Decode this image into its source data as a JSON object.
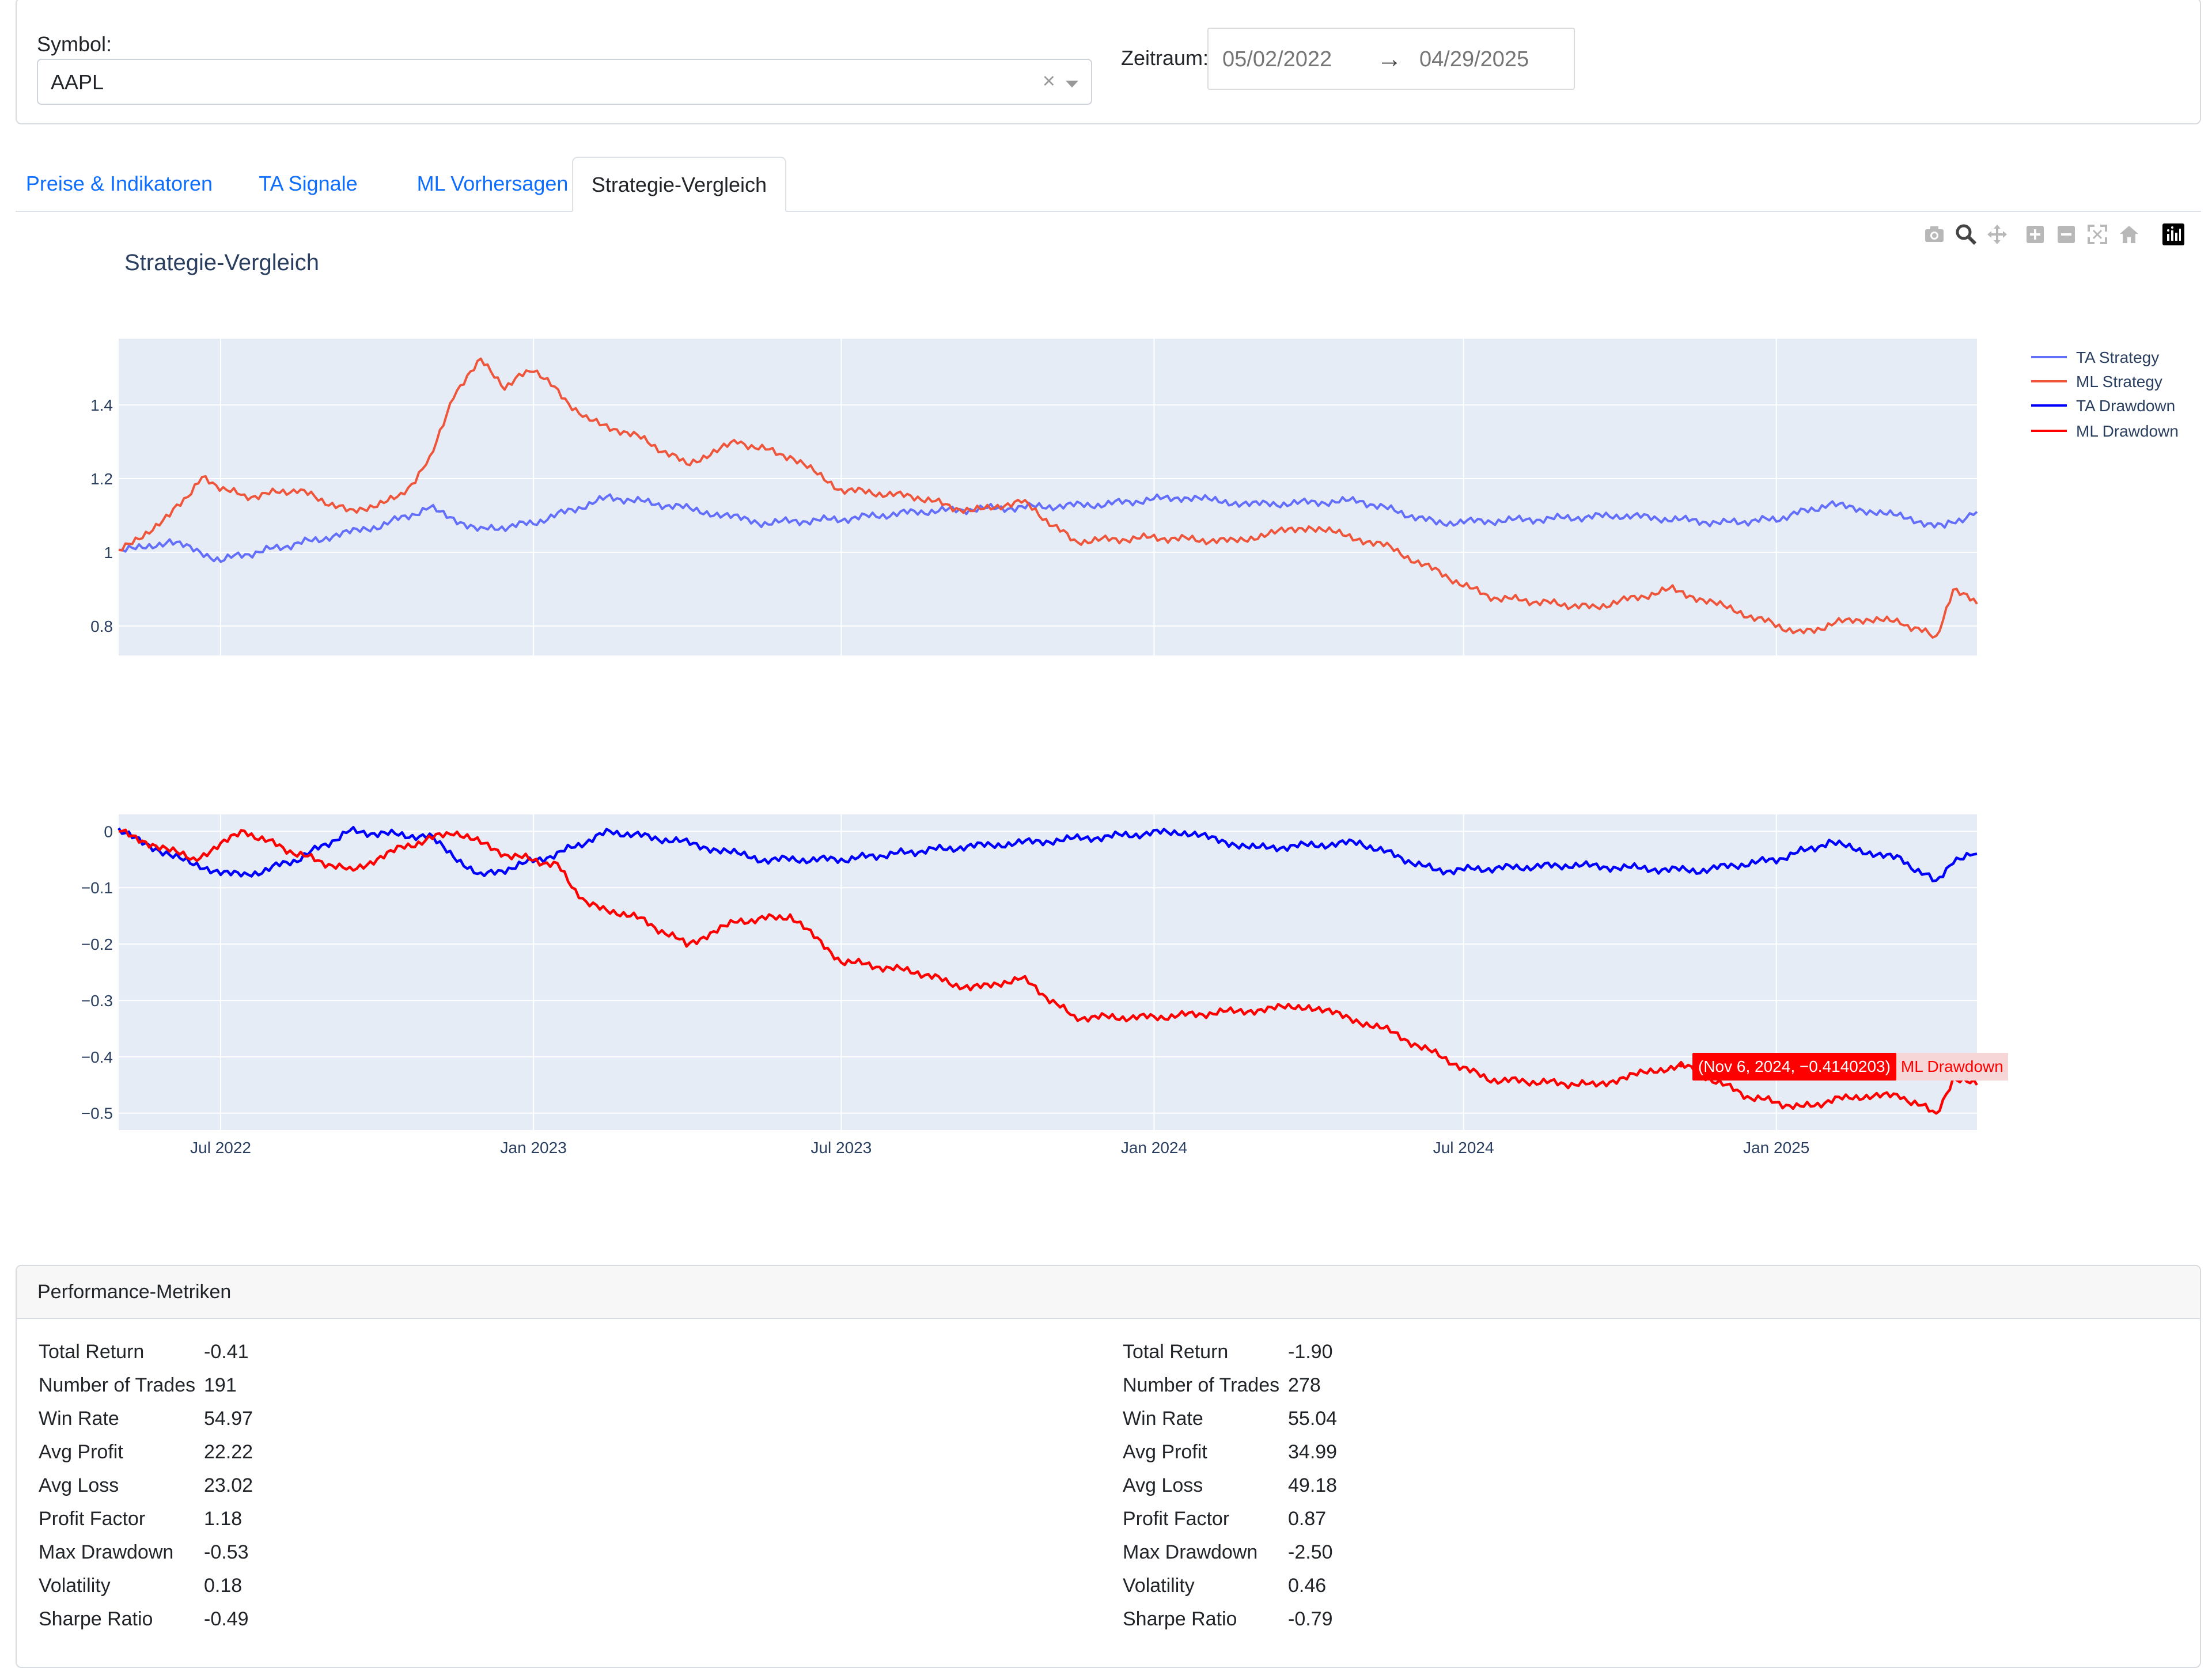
{
  "filters": {
    "symbol_label": "Symbol:",
    "symbol_value": "AAPL",
    "clear_glyph": "×",
    "period_label": "Zeitraum:",
    "start_date": "05/02/2022",
    "end_date": "04/29/2025",
    "arrow_glyph": "→"
  },
  "tabs": [
    {
      "label": "Preise & Indikatoren"
    },
    {
      "label": "TA Signale"
    },
    {
      "label": "ML Vorhersagen"
    },
    {
      "label": "Strategie-Vergleich",
      "active": true
    }
  ],
  "modebar": {
    "icons": [
      "camera-icon",
      "zoom-icon",
      "pan-icon",
      "zoom-in-icon",
      "zoom-out-icon",
      "autoscale-icon",
      "reset-axes-icon",
      "plotly-logo-icon"
    ]
  },
  "chart_data": {
    "type": "line",
    "title": "Strategie-Vergleich",
    "x_ticks": [
      "Jul 2022",
      "Jan 2023",
      "Jul 2023",
      "Jan 2024",
      "Jul 2024",
      "Jan 2025"
    ],
    "x_range": [
      "2022-05-02",
      "2025-04-29"
    ],
    "legend": [
      "TA Strategy",
      "ML Strategy",
      "TA Drawdown",
      "ML Drawdown"
    ],
    "legend_position": "top-right",
    "colors": {
      "ta_strategy": "#636efa",
      "ml_strategy": "#ef553b",
      "ta_drawdown": "#0000ff",
      "ml_drawdown": "#ff0000"
    },
    "panels": [
      {
        "name": "equity",
        "y_ticks": [
          "0.8",
          "1",
          "1.2",
          "1.4"
        ],
        "y_range": [
          0.72,
          1.58
        ],
        "series": [
          {
            "name": "TA Strategy",
            "points": [
              [
                "2022-05-02",
                1.0
              ],
              [
                "2022-06-01",
                1.03
              ],
              [
                "2022-07-01",
                0.98
              ],
              [
                "2022-08-01",
                1.01
              ],
              [
                "2022-09-01",
                1.04
              ],
              [
                "2022-10-01",
                1.07
              ],
              [
                "2022-11-01",
                1.12
              ],
              [
                "2022-12-01",
                1.06
              ],
              [
                "2023-01-01",
                1.08
              ],
              [
                "2023-02-15",
                1.15
              ],
              [
                "2023-04-01",
                1.12
              ],
              [
                "2023-05-15",
                1.08
              ],
              [
                "2023-07-01",
                1.09
              ],
              [
                "2023-08-15",
                1.11
              ],
              [
                "2023-10-01",
                1.12
              ],
              [
                "2023-12-01",
                1.13
              ],
              [
                "2024-01-15",
                1.15
              ],
              [
                "2024-03-01",
                1.13
              ],
              [
                "2024-05-01",
                1.14
              ],
              [
                "2024-06-15",
                1.08
              ],
              [
                "2024-08-15",
                1.09
              ],
              [
                "2024-10-01",
                1.1
              ],
              [
                "2024-12-01",
                1.08
              ],
              [
                "2025-01-01",
                1.09
              ],
              [
                "2025-02-01",
                1.13
              ],
              [
                "2025-03-01",
                1.11
              ],
              [
                "2025-04-10",
                1.07
              ],
              [
                "2025-04-29",
                1.11
              ]
            ]
          },
          {
            "name": "ML Strategy",
            "points": [
              [
                "2022-05-02",
                1.0
              ],
              [
                "2022-06-01",
                1.1
              ],
              [
                "2022-06-20",
                1.2
              ],
              [
                "2022-07-15",
                1.15
              ],
              [
                "2022-08-15",
                1.17
              ],
              [
                "2022-09-15",
                1.11
              ],
              [
                "2022-10-15",
                1.15
              ],
              [
                "2022-11-01",
                1.25
              ],
              [
                "2022-11-15",
                1.43
              ],
              [
                "2022-12-01",
                1.52
              ],
              [
                "2022-12-15",
                1.45
              ],
              [
                "2023-01-01",
                1.5
              ],
              [
                "2023-02-01",
                1.36
              ],
              [
                "2023-03-01",
                1.32
              ],
              [
                "2023-04-01",
                1.24
              ],
              [
                "2023-05-01",
                1.3
              ],
              [
                "2023-06-01",
                1.26
              ],
              [
                "2023-07-01",
                1.17
              ],
              [
                "2023-08-15",
                1.15
              ],
              [
                "2023-09-15",
                1.11
              ],
              [
                "2023-10-15",
                1.14
              ],
              [
                "2023-11-15",
                1.03
              ],
              [
                "2024-01-01",
                1.04
              ],
              [
                "2024-02-15",
                1.03
              ],
              [
                "2024-04-01",
                1.07
              ],
              [
                "2024-05-15",
                1.02
              ],
              [
                "2024-07-15",
                0.88
              ],
              [
                "2024-09-15",
                0.85
              ],
              [
                "2024-11-01",
                0.9
              ],
              [
                "2024-12-15",
                0.83
              ],
              [
                "2025-01-15",
                0.78
              ],
              [
                "2025-02-15",
                0.82
              ],
              [
                "2025-03-15",
                0.81
              ],
              [
                "2025-04-05",
                0.77
              ],
              [
                "2025-04-15",
                0.9
              ],
              [
                "2025-04-29",
                0.86
              ]
            ]
          }
        ]
      },
      {
        "name": "drawdown",
        "y_ticks": [
          "0",
          "−0.1",
          "−0.2",
          "−0.3",
          "−0.4",
          "−0.5"
        ],
        "y_range": [
          -0.53,
          0.03
        ],
        "series": [
          {
            "name": "TA Drawdown",
            "points": [
              [
                "2022-05-02",
                0.0
              ],
              [
                "2022-06-15",
                -0.06
              ],
              [
                "2022-07-15",
                -0.08
              ],
              [
                "2022-08-15",
                -0.05
              ],
              [
                "2022-09-15",
                0.0
              ],
              [
                "2022-11-01",
                -0.01
              ],
              [
                "2022-12-01",
                -0.08
              ],
              [
                "2023-01-15",
                -0.04
              ],
              [
                "2023-02-15",
                0.0
              ],
              [
                "2023-04-01",
                -0.02
              ],
              [
                "2023-05-15",
                -0.05
              ],
              [
                "2023-07-01",
                -0.05
              ],
              [
                "2023-09-01",
                -0.03
              ],
              [
                "2023-12-01",
                -0.01
              ],
              [
                "2024-01-15",
                0.0
              ],
              [
                "2024-03-01",
                -0.03
              ],
              [
                "2024-05-01",
                -0.02
              ],
              [
                "2024-06-15",
                -0.07
              ],
              [
                "2024-09-01",
                -0.06
              ],
              [
                "2024-11-15",
                -0.07
              ],
              [
                "2025-01-01",
                -0.05
              ],
              [
                "2025-02-01",
                -0.02
              ],
              [
                "2025-03-15",
                -0.05
              ],
              [
                "2025-04-05",
                -0.09
              ],
              [
                "2025-04-15",
                -0.05
              ],
              [
                "2025-04-29",
                -0.04
              ]
            ]
          },
          {
            "name": "ML Drawdown",
            "points": [
              [
                "2022-05-02",
                0.0
              ],
              [
                "2022-06-15",
                -0.05
              ],
              [
                "2022-07-15",
                0.0
              ],
              [
                "2022-08-15",
                -0.04
              ],
              [
                "2022-09-15",
                -0.07
              ],
              [
                "2022-10-15",
                -0.03
              ],
              [
                "2022-11-15",
                0.0
              ],
              [
                "2022-12-15",
                -0.04
              ],
              [
                "2023-01-15",
                -0.06
              ],
              [
                "2023-02-01",
                -0.13
              ],
              [
                "2023-03-01",
                -0.15
              ],
              [
                "2023-04-01",
                -0.2
              ],
              [
                "2023-05-01",
                -0.16
              ],
              [
                "2023-06-01",
                -0.15
              ],
              [
                "2023-07-01",
                -0.23
              ],
              [
                "2023-08-15",
                -0.25
              ],
              [
                "2023-09-15",
                -0.28
              ],
              [
                "2023-10-15",
                -0.26
              ],
              [
                "2023-11-15",
                -0.33
              ],
              [
                "2024-01-01",
                -0.33
              ],
              [
                "2024-02-15",
                -0.32
              ],
              [
                "2024-04-01",
                -0.31
              ],
              [
                "2024-05-15",
                -0.35
              ],
              [
                "2024-07-15",
                -0.44
              ],
              [
                "2024-09-15",
                -0.45
              ],
              [
                "2024-11-06",
                -0.414
              ],
              [
                "2024-12-15",
                -0.47
              ],
              [
                "2025-01-15",
                -0.49
              ],
              [
                "2025-02-15",
                -0.47
              ],
              [
                "2025-03-15",
                -0.47
              ],
              [
                "2025-04-05",
                -0.5
              ],
              [
                "2025-04-15",
                -0.44
              ],
              [
                "2025-04-29",
                -0.45
              ]
            ]
          }
        ]
      }
    ],
    "hover": {
      "text": "(Nov 6, 2024, −0.4140203)",
      "series": "ML Drawdown"
    }
  },
  "metrics": {
    "header": "Performance-Metriken",
    "left": [
      {
        "k": "Total Return",
        "v": "-0.41"
      },
      {
        "k": "Number of Trades",
        "v": "191"
      },
      {
        "k": "Win Rate",
        "v": "54.97"
      },
      {
        "k": "Avg Profit",
        "v": "22.22"
      },
      {
        "k": "Avg Loss",
        "v": "23.02"
      },
      {
        "k": "Profit Factor",
        "v": "1.18"
      },
      {
        "k": "Max Drawdown",
        "v": "-0.53"
      },
      {
        "k": "Volatility",
        "v": "0.18"
      },
      {
        "k": "Sharpe Ratio",
        "v": "-0.49"
      }
    ],
    "right": [
      {
        "k": "Total Return",
        "v": "-1.90"
      },
      {
        "k": "Number of Trades",
        "v": "278"
      },
      {
        "k": "Win Rate",
        "v": "55.04"
      },
      {
        "k": "Avg Profit",
        "v": "34.99"
      },
      {
        "k": "Avg Loss",
        "v": "49.18"
      },
      {
        "k": "Profit Factor",
        "v": "0.87"
      },
      {
        "k": "Max Drawdown",
        "v": "-2.50"
      },
      {
        "k": "Volatility",
        "v": "0.46"
      },
      {
        "k": "Sharpe Ratio",
        "v": "-0.79"
      }
    ]
  }
}
